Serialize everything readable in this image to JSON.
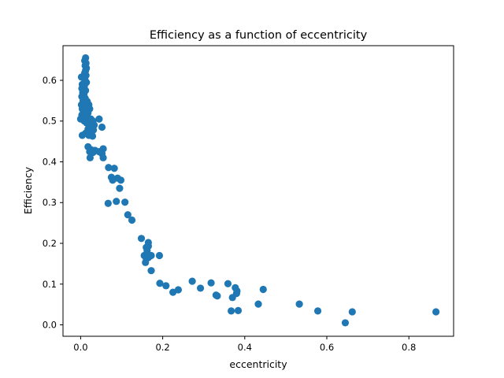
{
  "chart_data": {
    "type": "scatter",
    "title": "Efficiency as a function of eccentricity",
    "xlabel": "eccentricity",
    "ylabel": "Efficiency",
    "xlim": [
      -0.043,
      0.909
    ],
    "ylim": [
      -0.028,
      0.685
    ],
    "xticks": [
      0.0,
      0.2,
      0.4,
      0.6,
      0.8
    ],
    "xtick_labels": [
      "0.0",
      "0.2",
      "0.4",
      "0.6",
      "0.8"
    ],
    "yticks": [
      0.0,
      0.1,
      0.2,
      0.3,
      0.4,
      0.5,
      0.6
    ],
    "ytick_labels": [
      "0.0",
      "0.1",
      "0.2",
      "0.3",
      "0.4",
      "0.5",
      "0.6"
    ],
    "grid": false,
    "marker_color": "#1f77b4",
    "series": [
      {
        "points": [
          [
            0.012,
            0.655
          ],
          [
            0.01,
            0.648
          ],
          [
            0.013,
            0.642
          ],
          [
            0.011,
            0.636
          ],
          [
            0.014,
            0.63
          ],
          [
            0.012,
            0.624
          ],
          [
            0.01,
            0.618
          ],
          [
            0.013,
            0.612
          ],
          [
            0.002,
            0.608
          ],
          [
            0.008,
            0.605
          ],
          [
            0.011,
            0.6
          ],
          [
            0.014,
            0.595
          ],
          [
            0.004,
            0.59
          ],
          [
            0.009,
            0.586
          ],
          [
            0.003,
            0.58
          ],
          [
            0.012,
            0.575
          ],
          [
            0.005,
            0.57
          ],
          [
            0.008,
            0.565
          ],
          [
            0.003,
            0.56
          ],
          [
            0.011,
            0.556
          ],
          [
            0.006,
            0.55
          ],
          [
            0.009,
            0.545
          ],
          [
            0.002,
            0.54
          ],
          [
            0.013,
            0.536
          ],
          [
            0.004,
            0.53
          ],
          [
            0.016,
            0.548
          ],
          [
            0.02,
            0.54
          ],
          [
            0.022,
            0.53
          ],
          [
            0.007,
            0.525
          ],
          [
            0.018,
            0.52
          ],
          [
            0.003,
            0.515
          ],
          [
            0.012,
            0.512
          ],
          [
            0.0,
            0.505
          ],
          [
            0.009,
            0.5
          ],
          [
            0.025,
            0.505
          ],
          [
            0.03,
            0.5
          ],
          [
            0.015,
            0.495
          ],
          [
            0.02,
            0.492
          ],
          [
            0.033,
            0.49
          ],
          [
            0.027,
            0.485
          ],
          [
            0.018,
            0.48
          ],
          [
            0.031,
            0.478
          ],
          [
            0.022,
            0.472
          ],
          [
            0.012,
            0.47
          ],
          [
            0.026,
            0.468
          ],
          [
            0.004,
            0.465
          ],
          [
            0.02,
            0.465
          ],
          [
            0.029,
            0.463
          ],
          [
            0.045,
            0.505
          ],
          [
            0.052,
            0.485
          ],
          [
            0.018,
            0.437
          ],
          [
            0.025,
            0.43
          ],
          [
            0.022,
            0.425
          ],
          [
            0.035,
            0.428
          ],
          [
            0.03,
            0.423
          ],
          [
            0.045,
            0.425
          ],
          [
            0.055,
            0.432
          ],
          [
            0.052,
            0.42
          ],
          [
            0.023,
            0.41
          ],
          [
            0.055,
            0.41
          ],
          [
            0.068,
            0.386
          ],
          [
            0.082,
            0.384
          ],
          [
            0.075,
            0.362
          ],
          [
            0.078,
            0.355
          ],
          [
            0.09,
            0.36
          ],
          [
            0.098,
            0.355
          ],
          [
            0.095,
            0.335
          ],
          [
            0.087,
            0.303
          ],
          [
            0.067,
            0.298
          ],
          [
            0.108,
            0.301
          ],
          [
            0.115,
            0.27
          ],
          [
            0.125,
            0.257
          ],
          [
            0.148,
            0.212
          ],
          [
            0.165,
            0.202
          ],
          [
            0.16,
            0.19
          ],
          [
            0.165,
            0.193
          ],
          [
            0.162,
            0.182
          ],
          [
            0.155,
            0.17
          ],
          [
            0.16,
            0.163
          ],
          [
            0.165,
            0.165
          ],
          [
            0.172,
            0.17
          ],
          [
            0.158,
            0.153
          ],
          [
            0.192,
            0.17
          ],
          [
            0.172,
            0.133
          ],
          [
            0.193,
            0.102
          ],
          [
            0.208,
            0.096
          ],
          [
            0.225,
            0.08
          ],
          [
            0.238,
            0.086
          ],
          [
            0.272,
            0.107
          ],
          [
            0.292,
            0.09
          ],
          [
            0.318,
            0.103
          ],
          [
            0.33,
            0.073
          ],
          [
            0.333,
            0.071
          ],
          [
            0.359,
            0.101
          ],
          [
            0.37,
            0.067
          ],
          [
            0.377,
            0.091
          ],
          [
            0.38,
            0.077
          ],
          [
            0.381,
            0.083
          ],
          [
            0.445,
            0.087
          ],
          [
            0.367,
            0.034
          ],
          [
            0.384,
            0.035
          ],
          [
            0.433,
            0.051
          ],
          [
            0.533,
            0.051
          ],
          [
            0.578,
            0.034
          ],
          [
            0.645,
            0.005
          ],
          [
            0.662,
            0.032
          ],
          [
            0.866,
            0.032
          ]
        ]
      }
    ]
  }
}
